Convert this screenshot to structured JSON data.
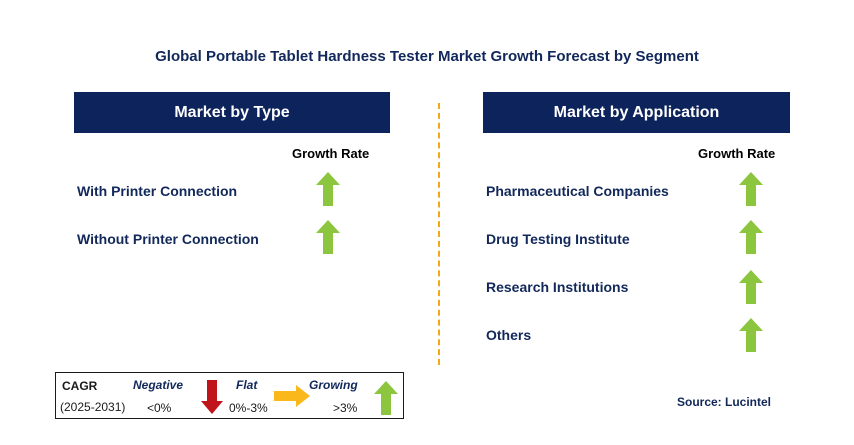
{
  "title": "Global Portable Tablet Hardness Tester Market Growth Forecast by Segment",
  "left_panel": {
    "header": "Market by Type",
    "growth_label": "Growth Rate",
    "items": [
      {
        "label": "With Printer Connection",
        "trend": "growing"
      },
      {
        "label": "Without Printer Connection",
        "trend": "growing"
      }
    ]
  },
  "right_panel": {
    "header": "Market by Application",
    "growth_label": "Growth Rate",
    "items": [
      {
        "label": "Pharmaceutical Companies",
        "trend": "growing"
      },
      {
        "label": "Drug Testing Institute",
        "trend": "growing"
      },
      {
        "label": "Research Institutions",
        "trend": "growing"
      },
      {
        "label": "Others",
        "trend": "growing"
      }
    ]
  },
  "legend": {
    "cagr_label": "CAGR",
    "period": "(2025-2031)",
    "negative_label": "Negative",
    "negative_range": "<0%",
    "flat_label": "Flat",
    "flat_range": "0%-3%",
    "growing_label": "Growing",
    "growing_range": ">3%"
  },
  "source": "Source: Lucintel",
  "colors": {
    "header_bg": "#0d235c",
    "growing_arrow": "#8cc63f",
    "negative_arrow": "#c0141b",
    "flat_arrow": "#fbb81b",
    "divider": "#f3a81b"
  }
}
